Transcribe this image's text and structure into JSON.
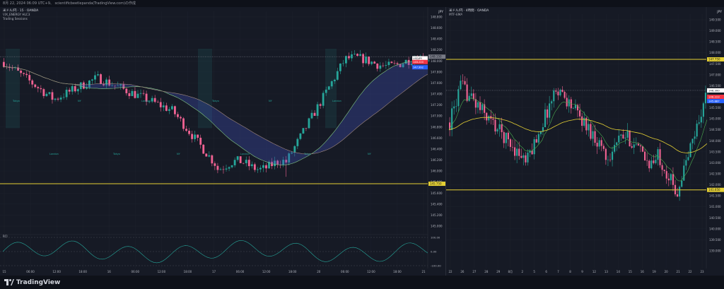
{
  "header": {
    "title": "8月 22, 2024 06:09 UTC+9、 scientificbeetlepanda(TradingView.com)の作成"
  },
  "footer": {
    "brand": "TradingView"
  },
  "chart_data": [
    {
      "type": "candlestick",
      "symbol_label": "USDJPY",
      "legend": [
        "米ドル/円 · 15 · OANDA",
        "VIX_ENERGY HLC3",
        "Trading Sessions"
      ],
      "currency": "JPY",
      "price_axis": [
        "148.800",
        "148.600",
        "148.400",
        "148.200",
        "148.000",
        "147.800",
        "147.600",
        "147.400",
        "147.200",
        "147.000",
        "146.800",
        "146.600",
        "146.400",
        "146.200",
        "146.000",
        "145.800",
        "145.600",
        "145.400",
        "145.200",
        "145.000"
      ],
      "ylim": [
        144.95,
        148.9
      ],
      "time_axis": [
        "15",
        "06:00",
        "12:00",
        "18:00",
        "16",
        "06:00",
        "12:00",
        "18:00",
        "17",
        "06:00",
        "12:00",
        "18:00",
        "20",
        "06:00",
        "12:00",
        "18:00",
        "21"
      ],
      "levels": [
        {
          "price": 148.15,
          "color": "#787b86",
          "style": "dotted",
          "label": "148.150"
        },
        {
          "price": 145.75,
          "color": "#e5d034",
          "style": "solid",
          "label": "145.750"
        }
      ],
      "price_labels": [
        {
          "text": "USDJPY",
          "price": 148.12,
          "color": "#ffffff"
        },
        {
          "text": "148.220",
          "price": 148.05,
          "color": "#f23645"
        },
        {
          "text": "147.992",
          "price": 147.95,
          "color": "#2962ff"
        }
      ],
      "session_labels": [
        "Tokyo",
        "London",
        "NY",
        "Tokyo",
        "London",
        "NY",
        "Tokyo",
        "London",
        "NY",
        "Tokyo",
        "London",
        "NY"
      ],
      "indicator": {
        "name": "RCI",
        "axis": [
          "100.00",
          "0.00",
          "-100.00"
        ],
        "ylim": [
          -100,
          100
        ]
      },
      "series_colors": {
        "up": "#26a69a",
        "down": "#f06292",
        "ma_fast": "#81c784",
        "ma_slow": "#a1887f",
        "cloud_bull": "#3f51b5",
        "cloud_bear": "#c2185b"
      }
    },
    {
      "type": "candlestick",
      "legend": [
        "米ドル/円 · 4時間 · OANDA",
        "MTF-EMA"
      ],
      "currency": "JPY",
      "price_axis": [
        "149.500",
        "149.000",
        "148.500",
        "148.000",
        "147.500",
        "147.000",
        "146.500",
        "146.000",
        "145.500",
        "145.000",
        "144.500",
        "144.000",
        "143.500",
        "143.000",
        "142.500",
        "142.000",
        "141.500",
        "141.000",
        "140.500",
        "140.000",
        "139.500",
        "139.000"
      ],
      "ylim": [
        138.8,
        149.6
      ],
      "time_axis": [
        "22",
        "26",
        "27",
        "28",
        "29",
        "8月",
        "2",
        "5",
        "6",
        "7",
        "8",
        "9",
        "12",
        "13",
        "14",
        "15",
        "16",
        "19",
        "20",
        "21",
        "22",
        "23"
      ],
      "levels": [
        {
          "price": 147.75,
          "color": "#e5d034",
          "style": "solid",
          "label": "147.750"
        },
        {
          "price": 141.65,
          "color": "#e5d034",
          "style": "solid",
          "label": "141.650"
        },
        {
          "price": 146.3,
          "color": "#787b86",
          "style": "dotted",
          "label": "146.300"
        }
      ],
      "price_labels": [
        {
          "text": "146.300",
          "price": 146.3,
          "color": "#ffffff"
        },
        {
          "text": "146.223",
          "price": 146.0,
          "color": "#f23645"
        },
        {
          "text": "145.887",
          "price": 145.8,
          "color": "#2962ff"
        }
      ],
      "series_colors": {
        "up": "#26a69a",
        "down": "#f06292",
        "ema_fast": "#4caf50",
        "ema_slow": "#e5d034"
      }
    }
  ]
}
